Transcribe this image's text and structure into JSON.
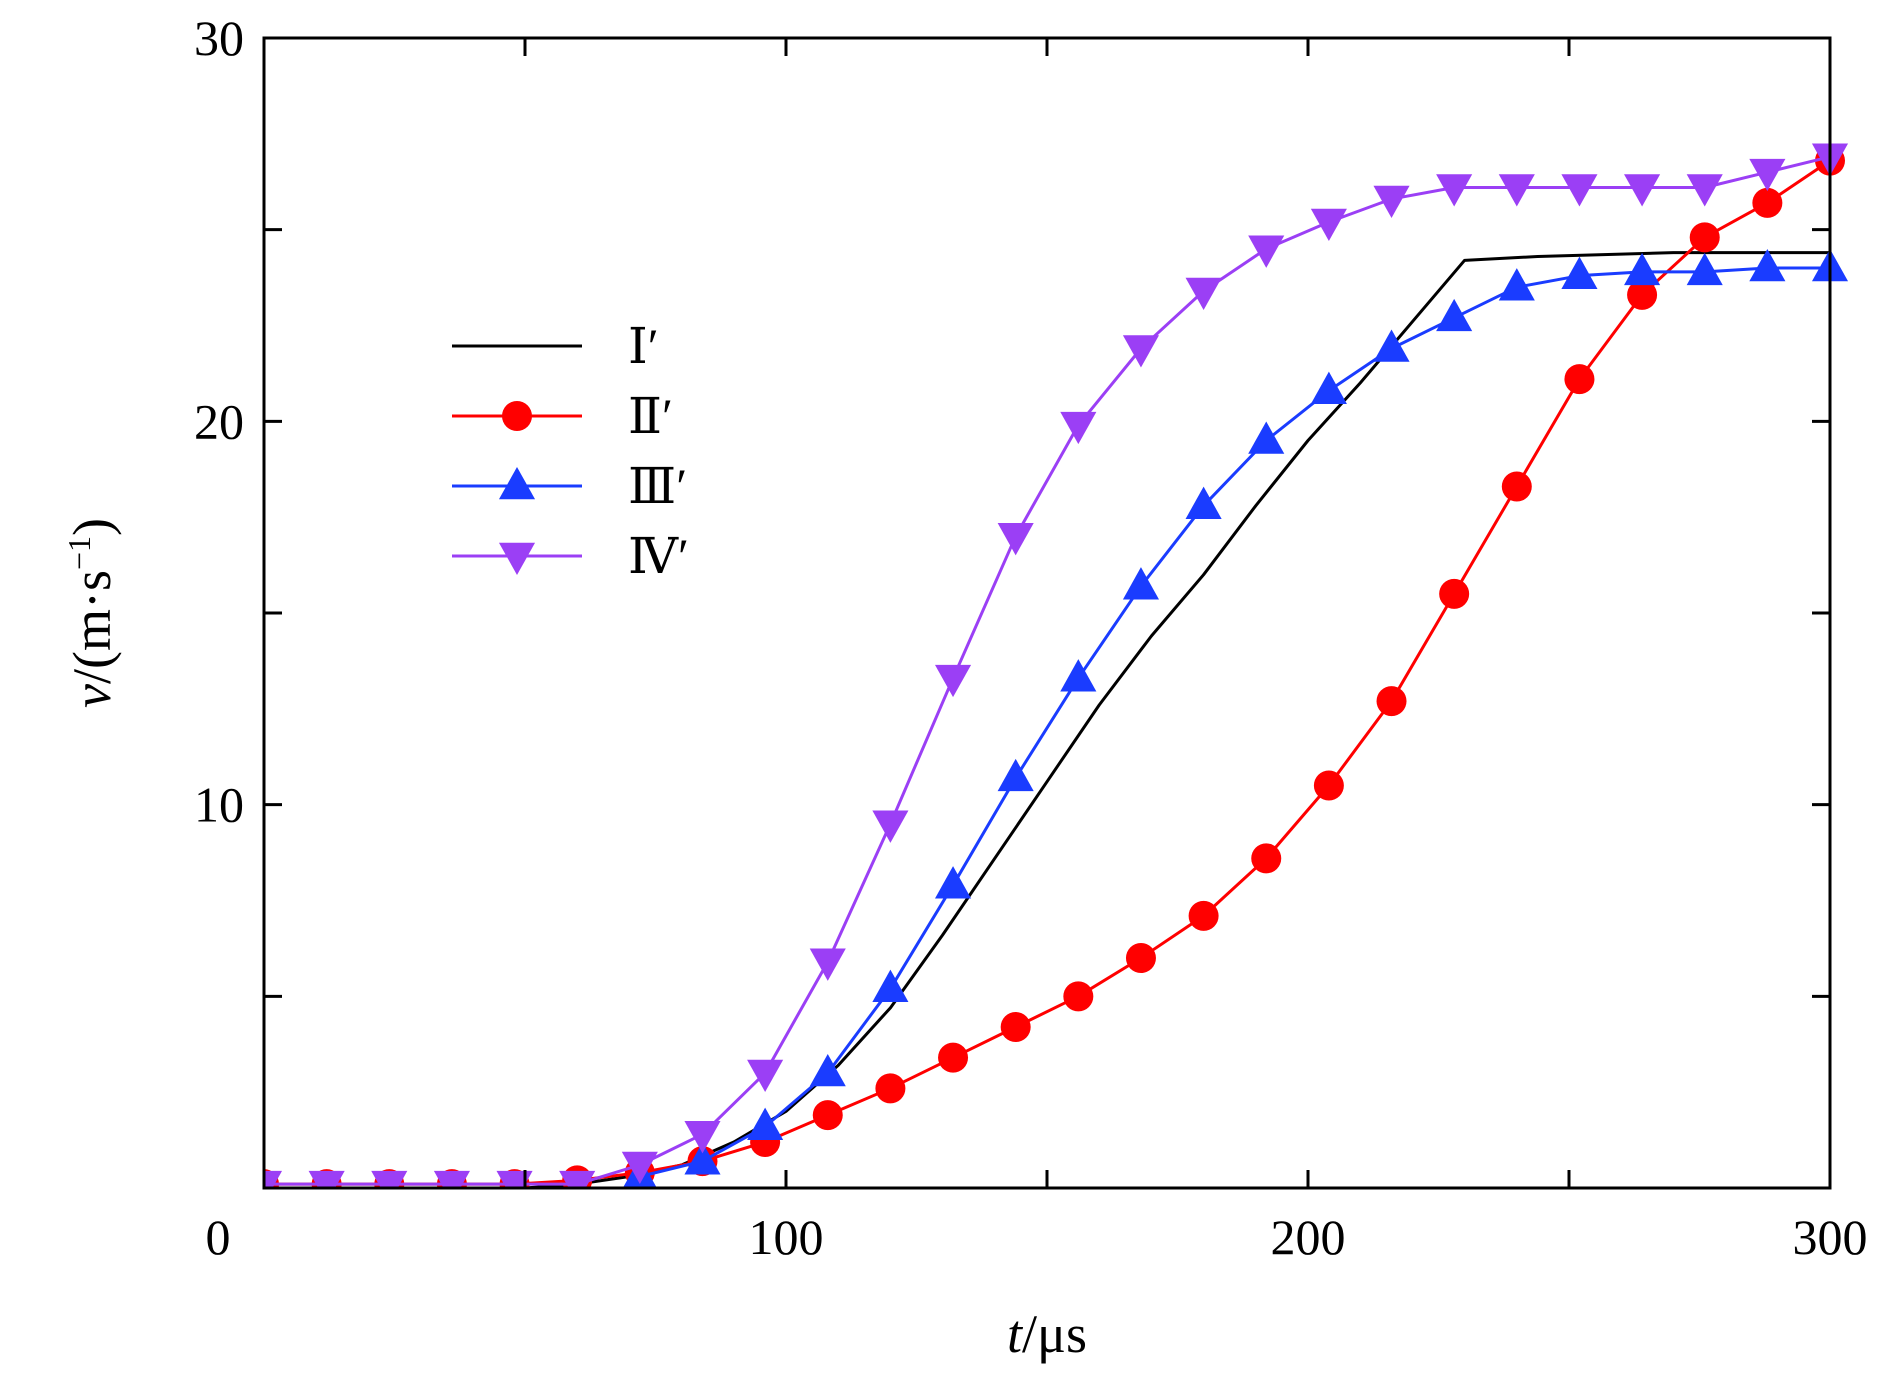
{
  "chart_data": {
    "type": "line",
    "xlabel": {
      "var": "t",
      "unit": "/μs"
    },
    "ylabel": {
      "var": "v",
      "unit": "/(m·s",
      "sup": "−1",
      "close": ")"
    },
    "xlim": [
      0,
      300
    ],
    "ylim": [
      0,
      30
    ],
    "x_ticks": [
      0,
      100,
      200,
      300
    ],
    "x_tick_labels": [
      "0",
      "100",
      "200",
      "300"
    ],
    "y_ticks": [
      10,
      20,
      30
    ],
    "y_tick_labels": [
      "10",
      "20",
      "30"
    ],
    "grid": false,
    "legend_position": "upper-left",
    "series": [
      {
        "name": "Ⅰ′",
        "color": "#000000",
        "marker": "none",
        "x": [
          0,
          50,
          60,
          70,
          80,
          90,
          100,
          110,
          120,
          130,
          140,
          150,
          160,
          170,
          180,
          190,
          200,
          210,
          220,
          230,
          244,
          270,
          300
        ],
        "y": [
          0,
          0,
          0.1,
          0.3,
          0.6,
          1.2,
          2.0,
          3.2,
          4.7,
          6.6,
          8.6,
          10.6,
          12.6,
          14.4,
          16.0,
          17.8,
          19.5,
          21.0,
          22.6,
          24.2,
          24.3,
          24.4,
          24.4
        ]
      },
      {
        "name": "Ⅱ′",
        "color": "#ff0000",
        "marker": "circle",
        "x": [
          0,
          12,
          24,
          36,
          48,
          60,
          72,
          84,
          96,
          108,
          120,
          132,
          144,
          156,
          168,
          180,
          192,
          204,
          216,
          228,
          240,
          252,
          264,
          276,
          288,
          300
        ],
        "y": [
          0.1,
          0.1,
          0.1,
          0.1,
          0.1,
          0.2,
          0.4,
          0.7,
          1.2,
          1.9,
          2.6,
          3.4,
          4.2,
          5.0,
          6.0,
          7.1,
          8.6,
          10.5,
          12.7,
          15.5,
          18.3,
          21.1,
          23.3,
          24.8,
          25.7,
          26.8
        ]
      },
      {
        "name": "Ⅲ′",
        "color": "#1a3cff",
        "marker": "triangle-up",
        "x": [
          72,
          84,
          96,
          108,
          120,
          132,
          144,
          156,
          168,
          180,
          192,
          204,
          216,
          228,
          240,
          252,
          264,
          276,
          288,
          300
        ],
        "y": [
          0.3,
          0.7,
          1.6,
          3.0,
          5.2,
          7.9,
          10.7,
          13.3,
          15.7,
          17.8,
          19.5,
          20.8,
          21.9,
          22.7,
          23.5,
          23.8,
          23.9,
          23.9,
          24.0,
          24.0
        ]
      },
      {
        "name": "Ⅳ′",
        "color": "#9b3ff5",
        "marker": "triangle-down",
        "x": [
          0,
          12,
          24,
          36,
          48,
          60,
          72,
          84,
          96,
          108,
          120,
          132,
          144,
          156,
          168,
          180,
          192,
          204,
          216,
          228,
          240,
          252,
          264,
          276,
          288,
          300
        ],
        "y": [
          0.1,
          0.1,
          0.1,
          0.1,
          0.1,
          0.1,
          0.6,
          1.4,
          3.0,
          5.9,
          9.5,
          13.3,
          17.0,
          19.9,
          21.9,
          23.4,
          24.5,
          25.2,
          25.8,
          26.1,
          26.1,
          26.1,
          26.1,
          26.1,
          26.5,
          26.9
        ]
      }
    ]
  }
}
